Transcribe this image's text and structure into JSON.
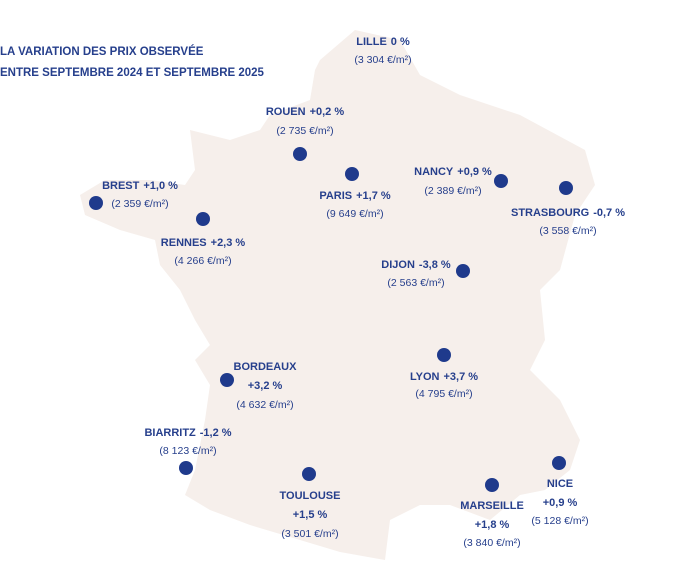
{
  "title": [
    "LA VARIATION DES PRIX OBSERVÉE",
    "ENTRE SEPTEMBRE 2024 ET SEPTEMBRE 2025"
  ],
  "cities": [
    {
      "name": "LILLE",
      "change": "0 %",
      "price": "(3 304 €/m²)"
    },
    {
      "name": "ROUEN",
      "change": "+0,2 %",
      "price": "(2 735 €/m²)"
    },
    {
      "name": "PARIS",
      "change": "+1,7 %",
      "price": "(9 649 €/m²)"
    },
    {
      "name": "NANCY",
      "change": "+0,9 %",
      "price": "(2 389 €/m²)"
    },
    {
      "name": "STRASBOURG",
      "change": "-0,7 %",
      "price": "(3 558 €/m²)"
    },
    {
      "name": "BREST",
      "change": "+1,0 %",
      "price": "(2 359 €/m²)"
    },
    {
      "name": "RENNES",
      "change": "+2,3 %",
      "price": "(4 266 €/m²)"
    },
    {
      "name": "DIJON",
      "change": "-3,8 %",
      "price": "(2 563 €/m²)"
    },
    {
      "name": "BORDEAUX",
      "change": "+3,2 %",
      "price": "(4 632 €/m²)"
    },
    {
      "name": "LYON",
      "change": "+3,7 %",
      "price": "(4 795 €/m²)"
    },
    {
      "name": "BIARRITZ",
      "change": "-1,2 %",
      "price": "(8 123 €/m²)"
    },
    {
      "name": "TOULOUSE",
      "change": "+1,5 %",
      "price": "(3 501 €/m²)"
    },
    {
      "name": "MARSEILLE",
      "change": "+1,8 %",
      "price": "(3 840 €/m²)"
    },
    {
      "name": "NICE",
      "change": "+0,9 %",
      "price": "(5 128 €/m²)"
    }
  ]
}
